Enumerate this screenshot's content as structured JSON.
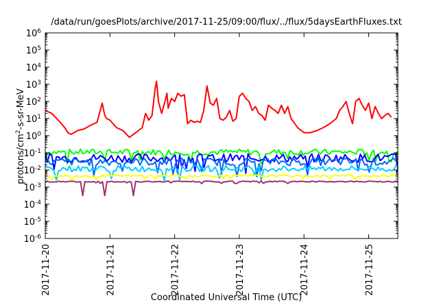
{
  "chart_data": {
    "type": "line",
    "title": "/data/run/goesPlots/archive/2017-11-25/09:00/flux/../flux/5daysEarthFluxes.txt",
    "xlabel": "Coordinated Universal Time (UTC)",
    "ylabel": {
      "base": "protons/cm",
      "sup": "2",
      "rest": "-s-sr-MeV"
    },
    "x_range": [
      "2017-11-20",
      "2017-11-25T09:00"
    ],
    "x_ticks": [
      {
        "day": 0,
        "label": "2017-11-20"
      },
      {
        "day": 1,
        "label": "2017-11-21"
      },
      {
        "day": 2,
        "label": "2017-11-22"
      },
      {
        "day": 3,
        "label": "2017-11-23"
      },
      {
        "day": 4,
        "label": "2017-11-24"
      },
      {
        "day": 5,
        "label": "2017-11-25"
      }
    ],
    "y_scale": "log",
    "y_range": [
      1e-06,
      1000000.0
    ],
    "y_ticks": [
      {
        "exp": 6,
        "base": "10",
        "sup": "6"
      },
      {
        "exp": 5,
        "base": "10",
        "sup": "5"
      },
      {
        "exp": 4,
        "base": "10",
        "sup": "4"
      },
      {
        "exp": 3,
        "base": "10",
        "sup": "3"
      },
      {
        "exp": 2,
        "base": "10",
        "sup": "2"
      },
      {
        "exp": 1,
        "base": "10",
        "sup": "1"
      },
      {
        "exp": 0,
        "base": "10",
        "sup": "0"
      },
      {
        "exp": -1,
        "base": "10",
        "sup": "-1"
      },
      {
        "exp": -2,
        "base": "10",
        "sup": "-2"
      },
      {
        "exp": -3,
        "base": "10",
        "sup": "-3"
      },
      {
        "exp": -4,
        "base": "10",
        "sup": "-4"
      },
      {
        "exp": -5,
        "base": "10",
        "sup": "-5"
      },
      {
        "exp": -6,
        "base": "10",
        "sup": "-6"
      }
    ],
    "grid": false,
    "legend": "none",
    "series": [
      {
        "color": "#ff0000",
        "x": [
          0.0,
          0.1,
          0.2,
          0.3,
          0.35,
          0.4,
          0.5,
          0.6,
          0.7,
          0.8,
          0.85,
          0.88,
          0.92,
          0.95,
          1.0,
          1.1,
          1.2,
          1.3,
          1.4,
          1.5,
          1.55,
          1.6,
          1.65,
          1.7,
          1.72,
          1.75,
          1.8,
          1.85,
          1.88,
          1.9,
          1.95,
          2.0,
          2.05,
          2.1,
          2.15,
          2.2,
          2.25,
          2.3,
          2.35,
          2.4,
          2.45,
          2.5,
          2.55,
          2.6,
          2.65,
          2.7,
          2.75,
          2.8,
          2.85,
          2.9,
          2.95,
          3.0,
          3.05,
          3.1,
          3.15,
          3.2,
          3.25,
          3.3,
          3.35,
          3.4,
          3.45,
          3.5,
          3.55,
          3.6,
          3.65,
          3.7,
          3.75,
          3.8,
          3.9,
          4.0,
          4.1,
          4.2,
          4.3,
          4.4,
          4.5,
          4.55,
          4.6,
          4.65,
          4.7,
          4.75,
          4.8,
          4.85,
          4.9,
          4.95,
          5.0,
          5.05,
          5.1,
          5.15,
          5.2,
          5.25,
          5.3,
          5.35
        ],
        "y": [
          30,
          20,
          8,
          3,
          1.5,
          1.2,
          2,
          2.5,
          4,
          6,
          30,
          80,
          15,
          10,
          8,
          3,
          2,
          0.8,
          1.5,
          3,
          20,
          8,
          15,
          600,
          1500,
          100,
          20,
          100,
          300,
          40,
          150,
          100,
          300,
          200,
          250,
          5,
          8,
          6,
          7,
          6,
          30,
          800,
          80,
          60,
          150,
          10,
          8,
          12,
          30,
          7,
          10,
          200,
          300,
          150,
          100,
          30,
          50,
          20,
          15,
          8,
          60,
          40,
          30,
          20,
          60,
          20,
          50,
          10,
          3,
          1.5,
          1.5,
          2,
          3,
          5,
          10,
          30,
          50,
          100,
          20,
          5,
          100,
          150,
          60,
          30,
          80,
          10,
          50,
          20,
          10,
          15,
          20,
          12
        ]
      },
      {
        "color": "#00ff00",
        "base": 0.11,
        "var": 0.35
      },
      {
        "color": "#0000ff",
        "base": 0.05,
        "var": 0.5
      },
      {
        "color": "#0066ff",
        "base": 0.03,
        "var": 0.45
      },
      {
        "color": "#00ccff",
        "base": 0.012,
        "var": 0.35
      },
      {
        "color": "#ffff00",
        "base": 0.0045,
        "var": 0.12
      },
      {
        "color": "#993366",
        "base": 0.0021,
        "var": 0.06
      }
    ]
  }
}
